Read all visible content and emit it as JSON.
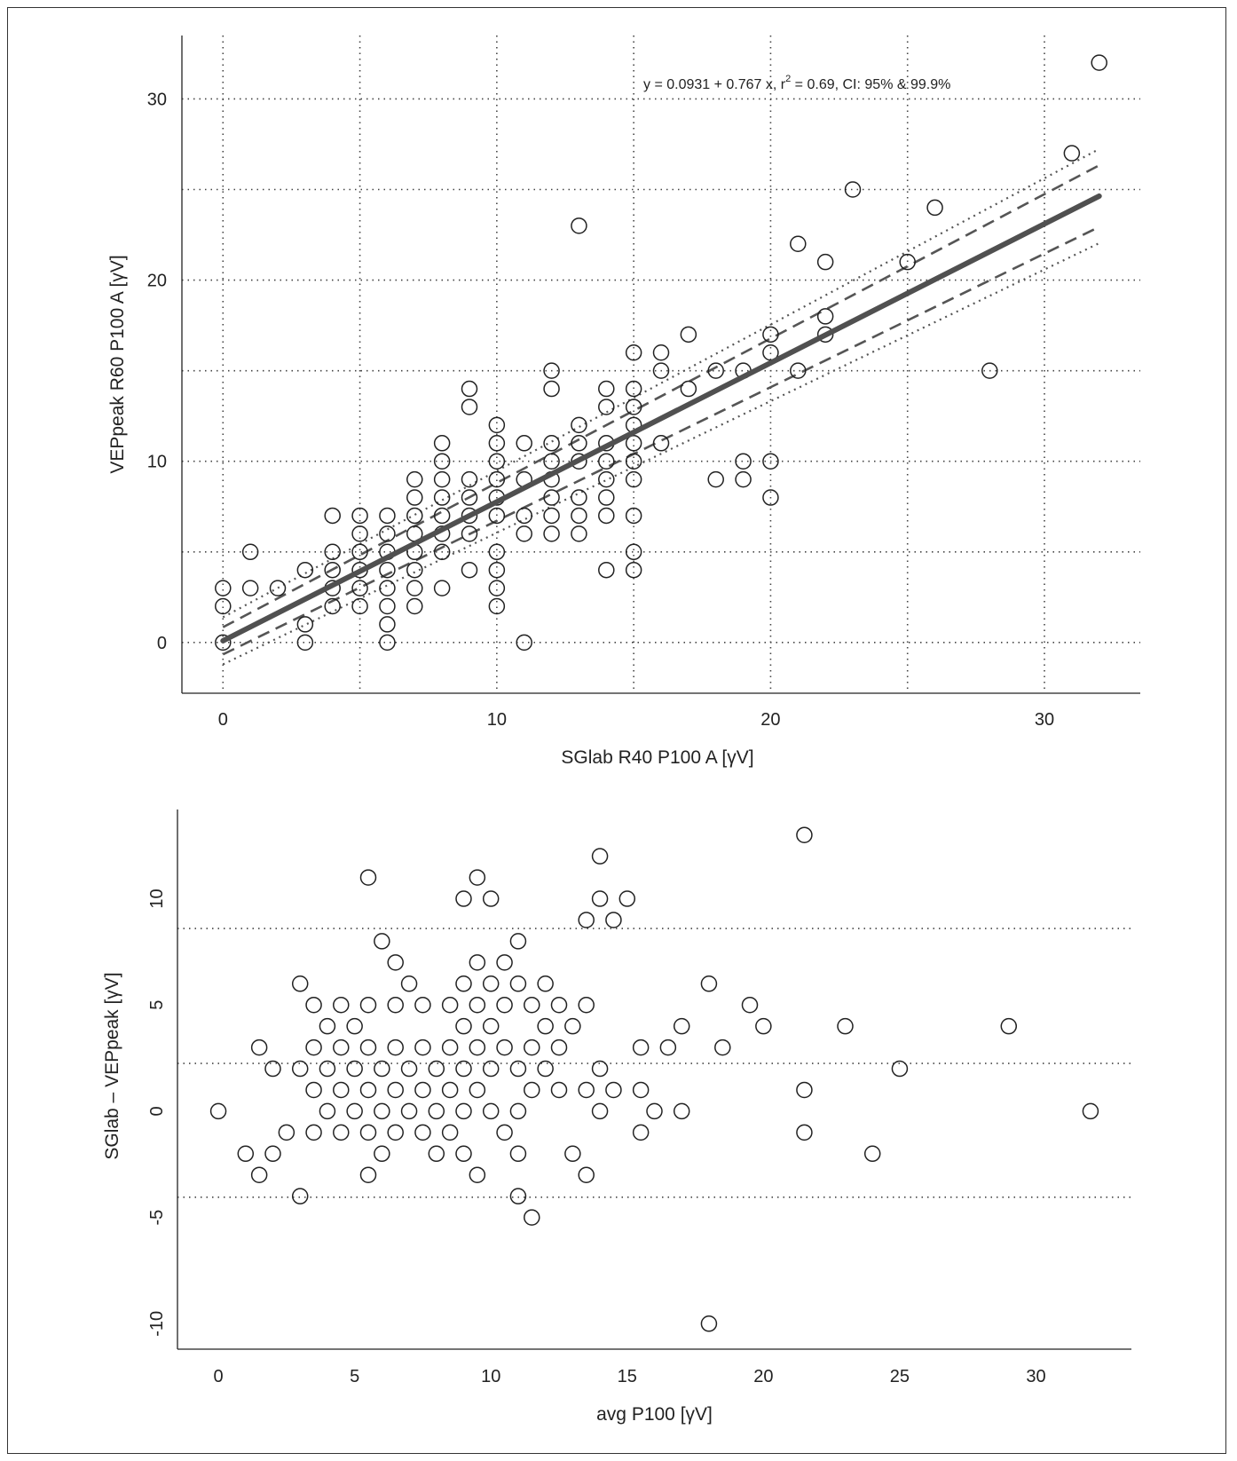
{
  "chart_data": [
    {
      "type": "scatter",
      "xlabel": "SGlab R40 P100 A [γV]",
      "ylabel": "VEPpeak R60 P100 A [γV]",
      "annotation": "y = 0.0931  + 0.767 x,  r",
      "annotation_sup": "2",
      "annotation_tail": " = 0.69, CI: 95% & 99.9%",
      "xlim": [
        -1.5,
        33.5
      ],
      "ylim": [
        -2.8,
        33.5
      ],
      "xticks": [
        0,
        10,
        20,
        30
      ],
      "yticks": [
        0,
        10,
        20,
        30
      ],
      "grid_x": [
        0,
        5,
        10,
        15,
        20,
        25,
        30
      ],
      "grid_y": [
        0,
        5,
        10,
        15,
        20,
        25,
        30
      ],
      "grid": true,
      "regression": {
        "intercept": 0.0931,
        "slope": 0.767,
        "x_range": [
          0,
          32
        ]
      },
      "ci_95_half_width": [
        0.75,
        1.7
      ],
      "ci_999_half_width": [
        1.3,
        2.6
      ],
      "points": [
        [
          0,
          0
        ],
        [
          0,
          2
        ],
        [
          0,
          3
        ],
        [
          1,
          3
        ],
        [
          1,
          5
        ],
        [
          2,
          3
        ],
        [
          3,
          0
        ],
        [
          3,
          1
        ],
        [
          3,
          4
        ],
        [
          4,
          2
        ],
        [
          4,
          3
        ],
        [
          4,
          4
        ],
        [
          4,
          5
        ],
        [
          4,
          7
        ],
        [
          5,
          2
        ],
        [
          5,
          3
        ],
        [
          5,
          4
        ],
        [
          5,
          5
        ],
        [
          5,
          6
        ],
        [
          5,
          7
        ],
        [
          6,
          0
        ],
        [
          6,
          1
        ],
        [
          6,
          2
        ],
        [
          6,
          3
        ],
        [
          6,
          4
        ],
        [
          6,
          5
        ],
        [
          6,
          6
        ],
        [
          6,
          7
        ],
        [
          7,
          2
        ],
        [
          7,
          3
        ],
        [
          7,
          4
        ],
        [
          7,
          5
        ],
        [
          7,
          6
        ],
        [
          7,
          7
        ],
        [
          7,
          8
        ],
        [
          7,
          9
        ],
        [
          8,
          3
        ],
        [
          8,
          5
        ],
        [
          8,
          6
        ],
        [
          8,
          7
        ],
        [
          8,
          8
        ],
        [
          8,
          9
        ],
        [
          8,
          10
        ],
        [
          8,
          11
        ],
        [
          9,
          4
        ],
        [
          9,
          6
        ],
        [
          9,
          7
        ],
        [
          9,
          8
        ],
        [
          9,
          9
        ],
        [
          9,
          13
        ],
        [
          9,
          14
        ],
        [
          10,
          2
        ],
        [
          10,
          3
        ],
        [
          10,
          4
        ],
        [
          10,
          5
        ],
        [
          10,
          7
        ],
        [
          10,
          8
        ],
        [
          10,
          9
        ],
        [
          10,
          10
        ],
        [
          10,
          11
        ],
        [
          10,
          12
        ],
        [
          11,
          0
        ],
        [
          11,
          6
        ],
        [
          11,
          7
        ],
        [
          11,
          9
        ],
        [
          11,
          11
        ],
        [
          12,
          6
        ],
        [
          12,
          7
        ],
        [
          12,
          8
        ],
        [
          12,
          9
        ],
        [
          12,
          10
        ],
        [
          12,
          11
        ],
        [
          12,
          14
        ],
        [
          12,
          15
        ],
        [
          13,
          6
        ],
        [
          13,
          7
        ],
        [
          13,
          8
        ],
        [
          13,
          10
        ],
        [
          13,
          11
        ],
        [
          13,
          12
        ],
        [
          13,
          23
        ],
        [
          14,
          4
        ],
        [
          14,
          7
        ],
        [
          14,
          8
        ],
        [
          14,
          9
        ],
        [
          14,
          10
        ],
        [
          14,
          11
        ],
        [
          14,
          13
        ],
        [
          14,
          14
        ],
        [
          15,
          4
        ],
        [
          15,
          5
        ],
        [
          15,
          7
        ],
        [
          15,
          9
        ],
        [
          15,
          10
        ],
        [
          15,
          11
        ],
        [
          15,
          12
        ],
        [
          15,
          13
        ],
        [
          15,
          14
        ],
        [
          15,
          16
        ],
        [
          16,
          11
        ],
        [
          16,
          15
        ],
        [
          16,
          16
        ],
        [
          17,
          14
        ],
        [
          17,
          17
        ],
        [
          18,
          9
        ],
        [
          18,
          15
        ],
        [
          19,
          9
        ],
        [
          19,
          10
        ],
        [
          19,
          15
        ],
        [
          20,
          8
        ],
        [
          20,
          10
        ],
        [
          20,
          16
        ],
        [
          20,
          17
        ],
        [
          21,
          15
        ],
        [
          21,
          22
        ],
        [
          22,
          17
        ],
        [
          22,
          18
        ],
        [
          22,
          21
        ],
        [
          23,
          25
        ],
        [
          25,
          21
        ],
        [
          26,
          24
        ],
        [
          28,
          15
        ],
        [
          31,
          27
        ],
        [
          32,
          32
        ]
      ]
    },
    {
      "type": "scatter",
      "xlabel": "avg P100 [γV]",
      "ylabel": "SGlab – VEPpeak [γV]",
      "xlim": [
        -1.5,
        33.5
      ],
      "ylim": [
        -11.2,
        14.2
      ],
      "xticks": [
        0,
        5,
        10,
        15,
        20,
        25,
        30
      ],
      "yticks": [
        -10,
        -5,
        0,
        5,
        10
      ],
      "grid": false,
      "reference_lines": [
        8.6,
        2.25,
        -4.05
      ],
      "points": [
        [
          0,
          0
        ],
        [
          1,
          -2
        ],
        [
          1.5,
          3
        ],
        [
          1.5,
          -3
        ],
        [
          2,
          2
        ],
        [
          2,
          -2
        ],
        [
          2.5,
          -1
        ],
        [
          3,
          6
        ],
        [
          3,
          2
        ],
        [
          3,
          -4
        ],
        [
          3.5,
          5
        ],
        [
          3.5,
          3
        ],
        [
          3.5,
          1
        ],
        [
          3.5,
          -1
        ],
        [
          4,
          4
        ],
        [
          4,
          2
        ],
        [
          4,
          0
        ],
        [
          4.5,
          5
        ],
        [
          4.5,
          3
        ],
        [
          4.5,
          1
        ],
        [
          4.5,
          -1
        ],
        [
          5,
          4
        ],
        [
          5,
          2
        ],
        [
          5,
          0
        ],
        [
          5.5,
          11
        ],
        [
          5.5,
          5
        ],
        [
          5.5,
          3
        ],
        [
          5.5,
          1
        ],
        [
          5.5,
          -1
        ],
        [
          5.5,
          -3
        ],
        [
          6,
          8
        ],
        [
          6,
          2
        ],
        [
          6,
          0
        ],
        [
          6,
          -2
        ],
        [
          6.5,
          7
        ],
        [
          6.5,
          5
        ],
        [
          6.5,
          3
        ],
        [
          6.5,
          1
        ],
        [
          6.5,
          -1
        ],
        [
          7,
          6
        ],
        [
          7,
          2
        ],
        [
          7,
          0
        ],
        [
          7.5,
          5
        ],
        [
          7.5,
          3
        ],
        [
          7.5,
          1
        ],
        [
          7.5,
          -1
        ],
        [
          8,
          2
        ],
        [
          8,
          0
        ],
        [
          8,
          -2
        ],
        [
          8.5,
          5
        ],
        [
          8.5,
          3
        ],
        [
          8.5,
          1
        ],
        [
          8.5,
          -1
        ],
        [
          9,
          10
        ],
        [
          9,
          6
        ],
        [
          9,
          4
        ],
        [
          9,
          2
        ],
        [
          9,
          0
        ],
        [
          9,
          -2
        ],
        [
          9.5,
          11
        ],
        [
          9.5,
          7
        ],
        [
          9.5,
          5
        ],
        [
          9.5,
          3
        ],
        [
          9.5,
          1
        ],
        [
          9.5,
          -3
        ],
        [
          10,
          10
        ],
        [
          10,
          6
        ],
        [
          10,
          4
        ],
        [
          10,
          2
        ],
        [
          10,
          0
        ],
        [
          10.5,
          7
        ],
        [
          10.5,
          5
        ],
        [
          10.5,
          3
        ],
        [
          10.5,
          -1
        ],
        [
          11,
          8
        ],
        [
          11,
          6
        ],
        [
          11,
          2
        ],
        [
          11,
          0
        ],
        [
          11,
          -2
        ],
        [
          11,
          -4
        ],
        [
          11.5,
          5
        ],
        [
          11.5,
          3
        ],
        [
          11.5,
          1
        ],
        [
          11.5,
          -5
        ],
        [
          12,
          6
        ],
        [
          12,
          4
        ],
        [
          12,
          2
        ],
        [
          12.5,
          5
        ],
        [
          12.5,
          3
        ],
        [
          12.5,
          1
        ],
        [
          13,
          4
        ],
        [
          13,
          -2
        ],
        [
          13.5,
          9
        ],
        [
          13.5,
          5
        ],
        [
          13.5,
          1
        ],
        [
          13.5,
          -3
        ],
        [
          14,
          12
        ],
        [
          14,
          10
        ],
        [
          14,
          2
        ],
        [
          14,
          0
        ],
        [
          14.5,
          9
        ],
        [
          14.5,
          1
        ],
        [
          15,
          10
        ],
        [
          15.5,
          3
        ],
        [
          15.5,
          1
        ],
        [
          15.5,
          -1
        ],
        [
          16,
          0
        ],
        [
          16.5,
          3
        ],
        [
          17,
          4
        ],
        [
          17,
          0
        ],
        [
          18,
          6
        ],
        [
          18,
          -10
        ],
        [
          18.5,
          3
        ],
        [
          19.5,
          5
        ],
        [
          20,
          4
        ],
        [
          21.5,
          13
        ],
        [
          21.5,
          1
        ],
        [
          21.5,
          -1
        ],
        [
          23,
          4
        ],
        [
          24,
          -2
        ],
        [
          25,
          2
        ],
        [
          29,
          4
        ],
        [
          32,
          0
        ]
      ]
    }
  ]
}
